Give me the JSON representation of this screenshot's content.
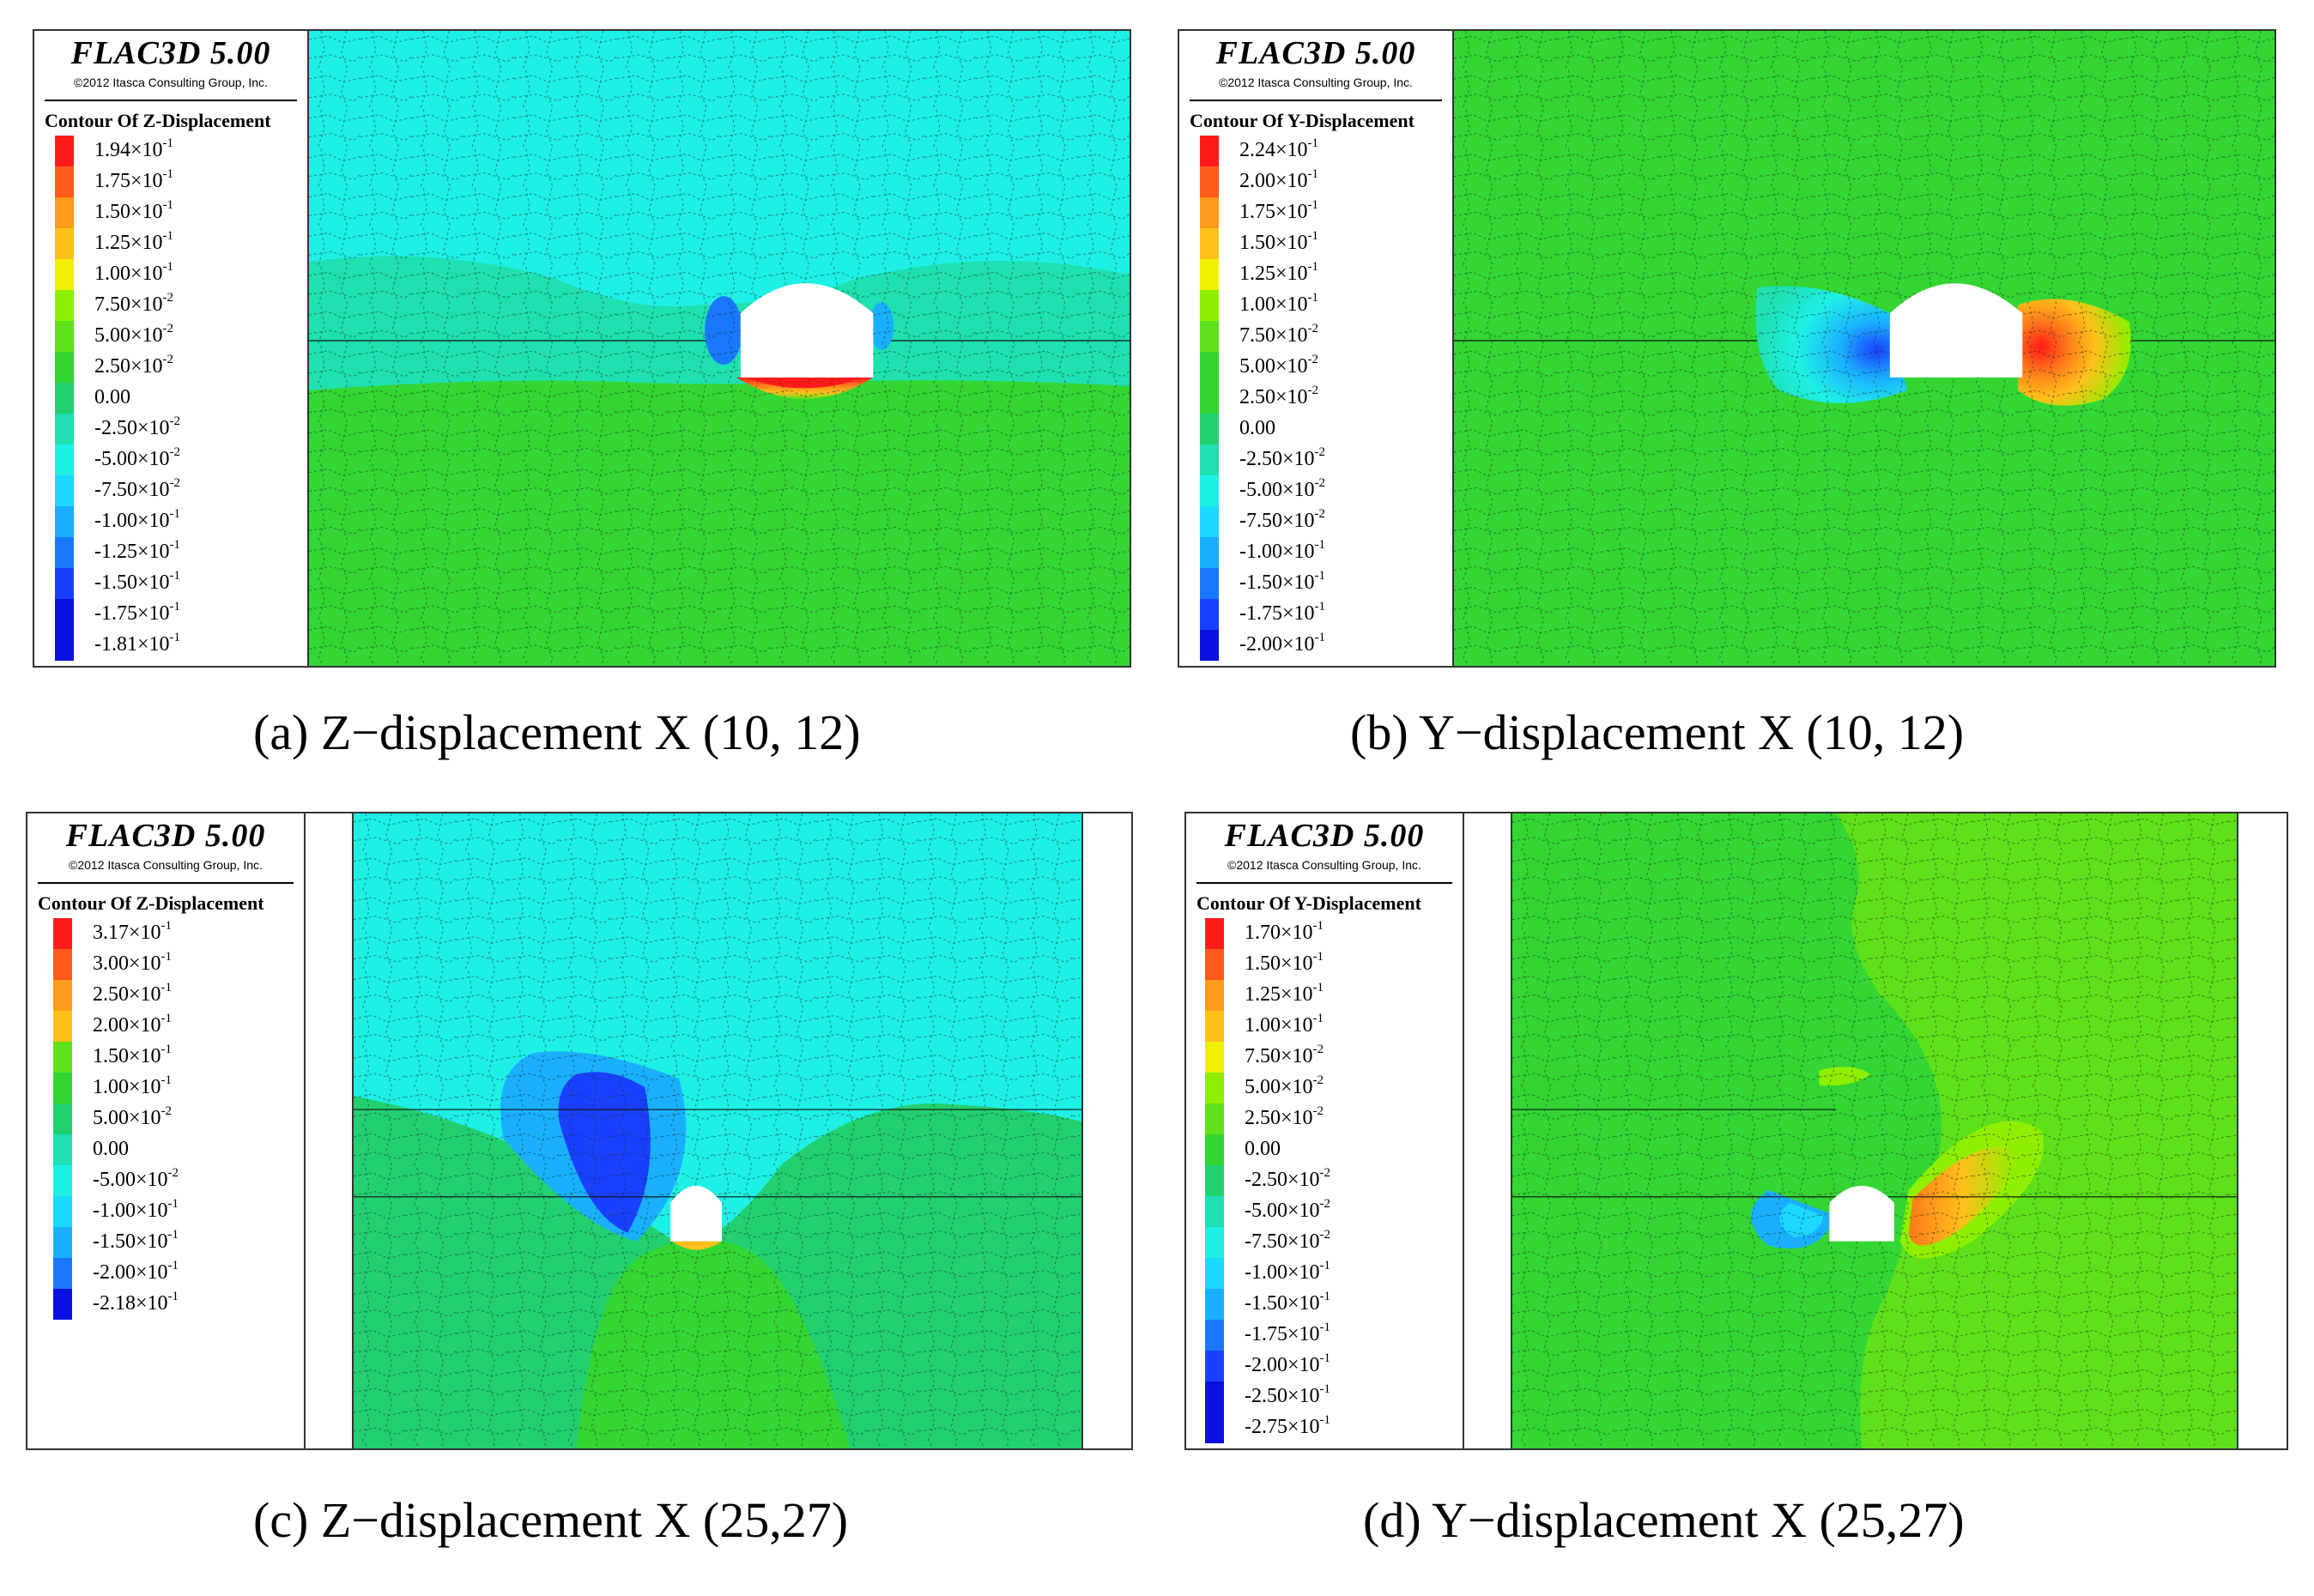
{
  "software": {
    "brand": "FLAC3D 5.00",
    "copyright": "©2012 Itasca Consulting Group, Inc."
  },
  "colors": {
    "red": "#ff1a1a",
    "orange_red": "#ff5a1a",
    "orange": "#ff9a1a",
    "amber": "#ffc01a",
    "yellow": "#f0f000",
    "yellow_green": "#8ef000",
    "lime": "#5ee01a",
    "green": "#33d633",
    "green2": "#22d070",
    "teal": "#1ee0b0",
    "cyan_light": "#1ef0e6",
    "cyan": "#1ad8ff",
    "sky": "#1ab0ff",
    "blue_mid": "#1a78ff",
    "blue": "#1a40ff",
    "navy": "#0a10e0"
  },
  "panels": [
    {
      "id": "a",
      "contour_title": "Contour Of Z-Displacement",
      "caption": "(a) Z−displacement X (10, 12)",
      "levels": [
        {
          "m": "1.94",
          "e": "-1",
          "c": "red"
        },
        {
          "m": "1.75",
          "e": "-1",
          "c": "orange_red"
        },
        {
          "m": "1.50",
          "e": "-1",
          "c": "orange"
        },
        {
          "m": "1.25",
          "e": "-1",
          "c": "amber"
        },
        {
          "m": "1.00",
          "e": "-1",
          "c": "yellow"
        },
        {
          "m": "7.50",
          "e": "-2",
          "c": "yellow_green"
        },
        {
          "m": "5.00",
          "e": "-2",
          "c": "lime"
        },
        {
          "m": "2.50",
          "e": "-2",
          "c": "green"
        },
        {
          "m": "0.00",
          "e": "",
          "c": "green2"
        },
        {
          "m": "-2.50",
          "e": "-2",
          "c": "teal"
        },
        {
          "m": "-5.00",
          "e": "-2",
          "c": "cyan_light"
        },
        {
          "m": "-7.50",
          "e": "-2",
          "c": "cyan"
        },
        {
          "m": "-1.00",
          "e": "-1",
          "c": "sky"
        },
        {
          "m": "-1.25",
          "e": "-1",
          "c": "blue_mid"
        },
        {
          "m": "-1.50",
          "e": "-1",
          "c": "blue"
        },
        {
          "m": "-1.75",
          "e": "-1",
          "c": "navy"
        },
        {
          "m": "-1.81",
          "e": "-1",
          "c": "navy"
        }
      ]
    },
    {
      "id": "b",
      "contour_title": "Contour Of Y-Displacement",
      "caption": "(b) Y−displacement X (10, 12)",
      "levels": [
        {
          "m": "2.24",
          "e": "-1",
          "c": "red"
        },
        {
          "m": "2.00",
          "e": "-1",
          "c": "orange_red"
        },
        {
          "m": "1.75",
          "e": "-1",
          "c": "orange"
        },
        {
          "m": "1.50",
          "e": "-1",
          "c": "amber"
        },
        {
          "m": "1.25",
          "e": "-1",
          "c": "yellow"
        },
        {
          "m": "1.00",
          "e": "-1",
          "c": "yellow_green"
        },
        {
          "m": "7.50",
          "e": "-2",
          "c": "lime"
        },
        {
          "m": "5.00",
          "e": "-2",
          "c": "green"
        },
        {
          "m": "2.50",
          "e": "-2",
          "c": "green"
        },
        {
          "m": "0.00",
          "e": "",
          "c": "green2"
        },
        {
          "m": "-2.50",
          "e": "-2",
          "c": "teal"
        },
        {
          "m": "-5.00",
          "e": "-2",
          "c": "cyan_light"
        },
        {
          "m": "-7.50",
          "e": "-2",
          "c": "cyan"
        },
        {
          "m": "-1.00",
          "e": "-1",
          "c": "sky"
        },
        {
          "m": "-1.50",
          "e": "-1",
          "c": "blue_mid"
        },
        {
          "m": "-1.75",
          "e": "-1",
          "c": "blue"
        },
        {
          "m": "-2.00",
          "e": "-1",
          "c": "navy"
        }
      ]
    },
    {
      "id": "c",
      "contour_title": "Contour Of Z-Displacement",
      "caption": "(c) Z−displacement X (25,27)",
      "levels": [
        {
          "m": "3.17",
          "e": "-1",
          "c": "red"
        },
        {
          "m": "3.00",
          "e": "-1",
          "c": "orange_red"
        },
        {
          "m": "2.50",
          "e": "-1",
          "c": "orange"
        },
        {
          "m": "2.00",
          "e": "-1",
          "c": "amber"
        },
        {
          "m": "1.50",
          "e": "-1",
          "c": "lime"
        },
        {
          "m": "1.00",
          "e": "-1",
          "c": "green"
        },
        {
          "m": "5.00",
          "e": "-2",
          "c": "green2"
        },
        {
          "m": "0.00",
          "e": "",
          "c": "teal"
        },
        {
          "m": "-5.00",
          "e": "-2",
          "c": "cyan_light"
        },
        {
          "m": "-1.00",
          "e": "-1",
          "c": "cyan"
        },
        {
          "m": "-1.50",
          "e": "-1",
          "c": "sky"
        },
        {
          "m": "-2.00",
          "e": "-1",
          "c": "blue_mid"
        },
        {
          "m": "-2.18",
          "e": "-1",
          "c": "navy"
        }
      ]
    },
    {
      "id": "d",
      "contour_title": "Contour Of Y-Displacement",
      "caption": "(d) Y−displacement X (25,27)",
      "levels": [
        {
          "m": "1.70",
          "e": "-1",
          "c": "red"
        },
        {
          "m": "1.50",
          "e": "-1",
          "c": "orange_red"
        },
        {
          "m": "1.25",
          "e": "-1",
          "c": "orange"
        },
        {
          "m": "1.00",
          "e": "-1",
          "c": "amber"
        },
        {
          "m": "7.50",
          "e": "-2",
          "c": "yellow"
        },
        {
          "m": "5.00",
          "e": "-2",
          "c": "yellow_green"
        },
        {
          "m": "2.50",
          "e": "-2",
          "c": "lime"
        },
        {
          "m": "0.00",
          "e": "",
          "c": "green"
        },
        {
          "m": "-2.50",
          "e": "-2",
          "c": "green2"
        },
        {
          "m": "-5.00",
          "e": "-2",
          "c": "teal"
        },
        {
          "m": "-7.50",
          "e": "-2",
          "c": "cyan_light"
        },
        {
          "m": "-1.00",
          "e": "-1",
          "c": "cyan"
        },
        {
          "m": "-1.50",
          "e": "-1",
          "c": "sky"
        },
        {
          "m": "-1.75",
          "e": "-1",
          "c": "blue_mid"
        },
        {
          "m": "-2.00",
          "e": "-1",
          "c": "blue"
        },
        {
          "m": "-2.50",
          "e": "-1",
          "c": "navy"
        },
        {
          "m": "-2.75",
          "e": "-1",
          "c": "navy"
        }
      ]
    }
  ]
}
